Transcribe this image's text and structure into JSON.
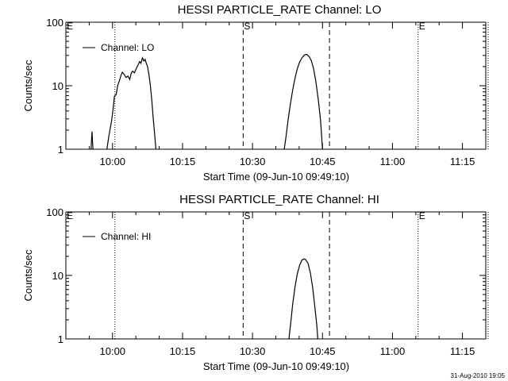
{
  "timestamp": "31-Aug-2010 19:05",
  "chart_data": [
    {
      "type": "line",
      "title": "HESSI PARTICLE_RATE Channel: LO",
      "xlabel": "Start Time (09-Jun-10 09:49:10)",
      "ylabel": "Counts/sec",
      "yscale": "log",
      "ylim": [
        1,
        100
      ],
      "xlim_minutes": [
        -10,
        80
      ],
      "xticks": [
        {
          "m": 0,
          "label": "10:00"
        },
        {
          "m": 15,
          "label": "10:15"
        },
        {
          "m": 30,
          "label": "10:30"
        },
        {
          "m": 45,
          "label": "10:45"
        },
        {
          "m": 60,
          "label": "11:00"
        },
        {
          "m": 75,
          "label": "11:15"
        }
      ],
      "yticks": [
        {
          "v": 1,
          "label": "1"
        },
        {
          "v": 10,
          "label": "10"
        },
        {
          "v": 100,
          "label": "100"
        }
      ],
      "legend": {
        "label": "Channel: LO",
        "position": "top-left"
      },
      "markers": [
        {
          "m": -10,
          "label": "E",
          "style": "none"
        },
        {
          "m": 0.5,
          "label": "",
          "style": "dotted"
        },
        {
          "m": 28,
          "label": "S",
          "style": "dashed"
        },
        {
          "m": 46.5,
          "label": "",
          "style": "dashed"
        },
        {
          "m": 65.5,
          "label": "E",
          "style": "dotted"
        },
        {
          "m": 80.5,
          "label": "",
          "style": "dotted"
        }
      ],
      "series": [
        {
          "name": "Channel: LO",
          "segments": [
            [
              [
                -4.6,
                1
              ],
              [
                -4.4,
                1.9
              ],
              [
                -4.2,
                1
              ]
            ],
            [
              [
                -1.2,
                1
              ],
              [
                -0.8,
                1.6
              ],
              [
                -0.2,
                2.8
              ],
              [
                0.1,
                4.2
              ],
              [
                0.4,
                6.8
              ],
              [
                0.8,
                7.3
              ],
              [
                1.1,
                10.0
              ],
              [
                1.4,
                11.5
              ],
              [
                1.8,
                14.5
              ],
              [
                2.1,
                16.3
              ],
              [
                2.5,
                15.0
              ],
              [
                2.9,
                13.5
              ],
              [
                3.3,
                14.2
              ],
              [
                3.7,
                12.5
              ],
              [
                4.0,
                15.8
              ],
              [
                4.3,
                17.0
              ],
              [
                4.7,
                16.0
              ],
              [
                5.1,
                18.8
              ],
              [
                5.4,
                20.8
              ],
              [
                5.8,
                24.0
              ],
              [
                6.1,
                22.5
              ],
              [
                6.4,
                27.5
              ],
              [
                6.7,
                24.5
              ],
              [
                7.0,
                26.0
              ],
              [
                7.2,
                23.0
              ],
              [
                7.5,
                20.0
              ],
              [
                7.8,
                15.0
              ],
              [
                8.1,
                10.2
              ],
              [
                8.4,
                6.0
              ],
              [
                8.7,
                3.2
              ],
              [
                9.0,
                1.8
              ],
              [
                9.3,
                1
              ]
            ],
            [
              [
                36.8,
                1
              ],
              [
                37.2,
                1.6
              ],
              [
                37.6,
                2.8
              ],
              [
                38.1,
                5.0
              ],
              [
                38.6,
                8.5
              ],
              [
                39.1,
                13.0
              ],
              [
                39.6,
                18.5
              ],
              [
                40.1,
                23.5
              ],
              [
                40.6,
                27.5
              ],
              [
                41.1,
                30.5
              ],
              [
                41.6,
                31.3
              ],
              [
                42.1,
                29.0
              ],
              [
                42.6,
                25.0
              ],
              [
                43.1,
                18.5
              ],
              [
                43.6,
                11.5
              ],
              [
                44.1,
                6.0
              ],
              [
                44.6,
                2.8
              ],
              [
                45.0,
                1
              ]
            ]
          ]
        }
      ]
    },
    {
      "type": "line",
      "title": "HESSI PARTICLE_RATE Channel: HI",
      "xlabel": "Start Time (09-Jun-10 09:49:10)",
      "ylabel": "Counts/sec",
      "yscale": "log",
      "ylim": [
        1,
        100
      ],
      "xlim_minutes": [
        -10,
        80
      ],
      "xticks": [
        {
          "m": 0,
          "label": "10:00"
        },
        {
          "m": 15,
          "label": "10:15"
        },
        {
          "m": 30,
          "label": "10:30"
        },
        {
          "m": 45,
          "label": "10:45"
        },
        {
          "m": 60,
          "label": "11:00"
        },
        {
          "m": 75,
          "label": "11:15"
        }
      ],
      "yticks": [
        {
          "v": 1,
          "label": "1"
        },
        {
          "v": 10,
          "label": "10"
        },
        {
          "v": 100,
          "label": "100"
        }
      ],
      "legend": {
        "label": "Channel: HI",
        "position": "top-left"
      },
      "markers": [
        {
          "m": -10,
          "label": "E",
          "style": "none"
        },
        {
          "m": 0.5,
          "label": "",
          "style": "dotted"
        },
        {
          "m": 28,
          "label": "S",
          "style": "dashed"
        },
        {
          "m": 46.5,
          "label": "",
          "style": "dashed"
        },
        {
          "m": 65.5,
          "label": "E",
          "style": "dotted"
        },
        {
          "m": 80.5,
          "label": "",
          "style": "dotted"
        }
      ],
      "series": [
        {
          "name": "Channel: HI",
          "segments": [
            [
              [
                37.8,
                1
              ],
              [
                38.2,
                1.8
              ],
              [
                38.6,
                3.5
              ],
              [
                39.1,
                6.5
              ],
              [
                39.6,
                10.5
              ],
              [
                40.1,
                14.5
              ],
              [
                40.6,
                17.5
              ],
              [
                41.0,
                18.2
              ],
              [
                41.4,
                17.8
              ],
              [
                41.9,
                15.5
              ],
              [
                42.4,
                11.0
              ],
              [
                42.9,
                6.5
              ],
              [
                43.4,
                3.0
              ],
              [
                43.8,
                1.6
              ],
              [
                44.0,
                1
              ]
            ]
          ]
        }
      ]
    }
  ]
}
